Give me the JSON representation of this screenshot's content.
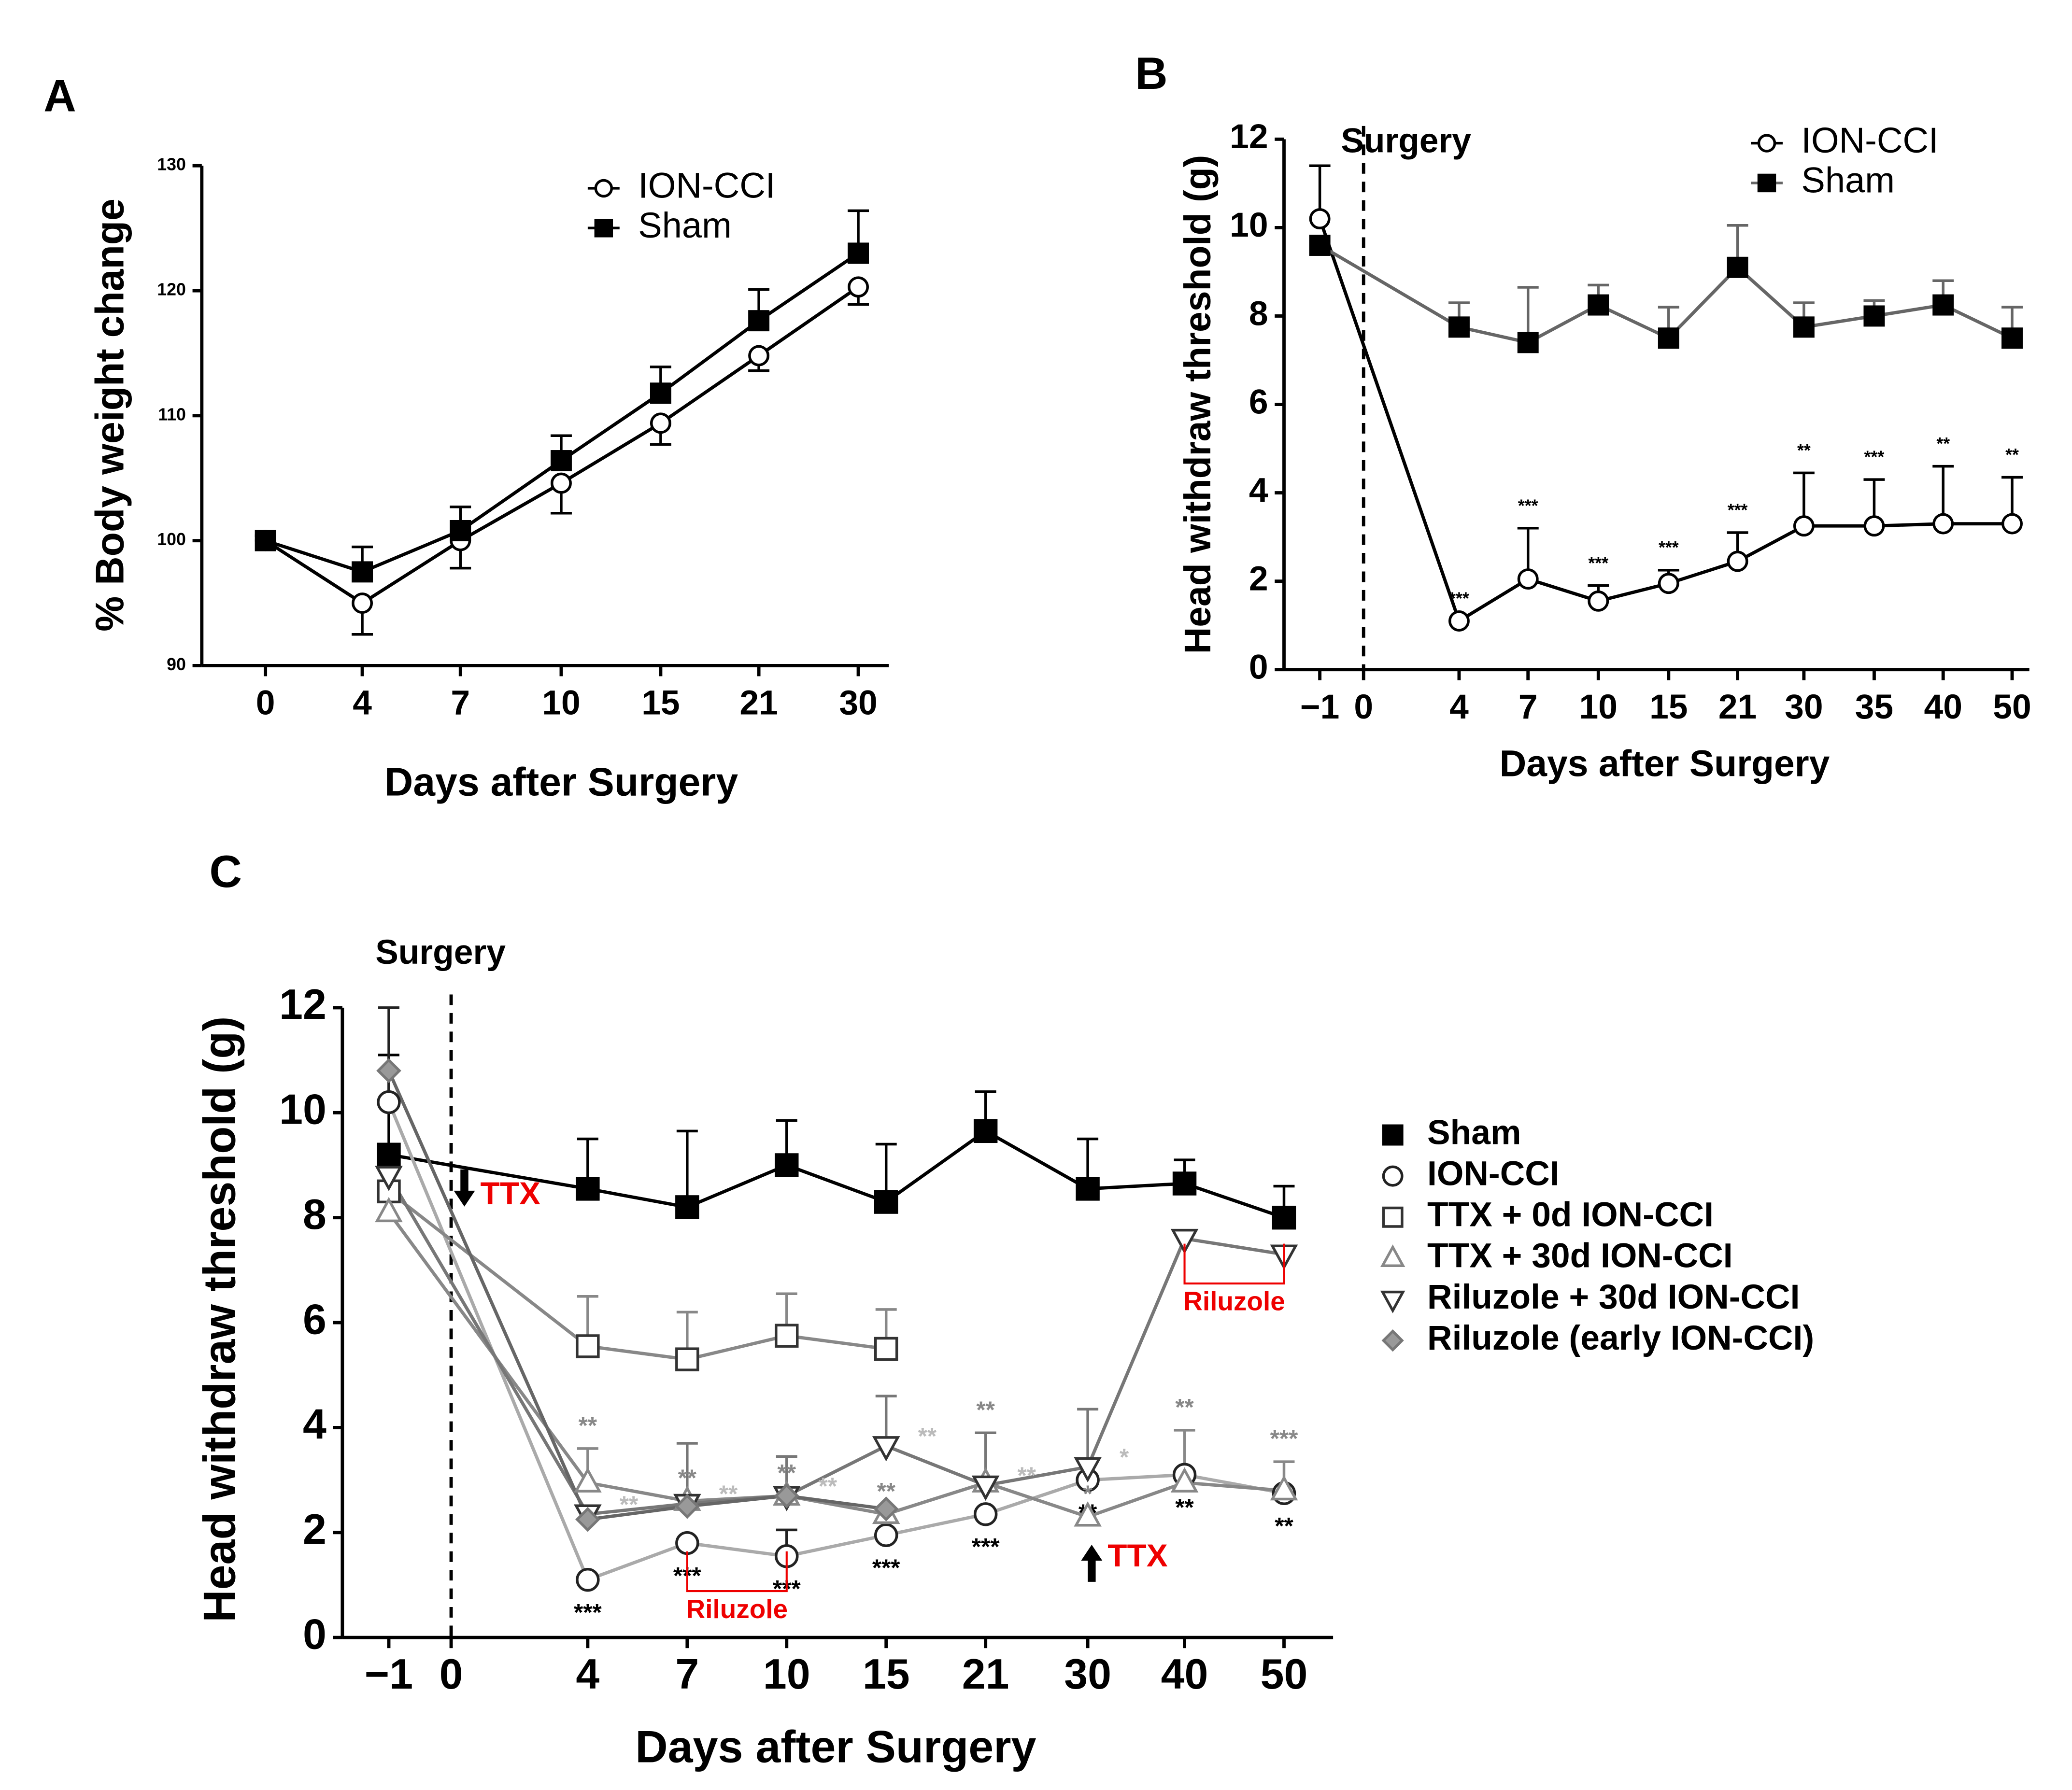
{
  "chart_data": [
    {
      "type": "line",
      "panel": "A",
      "x_label": "Days after Surgery",
      "y_label": "% Body weight change",
      "categories": [
        "0",
        "4",
        "7",
        "10",
        "15",
        "21",
        "30"
      ],
      "ylim": [
        90,
        130
      ],
      "yticks": [
        90,
        100,
        110,
        120,
        130
      ],
      "series": [
        {
          "name": "ION-CCI",
          "color": "#000000",
          "line_color": "#000000",
          "marker": "circle",
          "error_direction": "down",
          "values": [
            100,
            95.0,
            100.0,
            104.6,
            109.4,
            114.8,
            120.3
          ],
          "errors": [
            null,
            2.5,
            2.2,
            2.4,
            1.7,
            1.2,
            1.4
          ]
        },
        {
          "name": "Sham",
          "color": "#000000",
          "line_color": "#000000",
          "marker": "square-filled",
          "error_direction": "up",
          "values": [
            100,
            97.5,
            100.8,
            106.4,
            111.8,
            117.6,
            123.0
          ],
          "errors": [
            0.4,
            2.0,
            1.9,
            2.0,
            2.1,
            2.5,
            3.4
          ]
        }
      ]
    },
    {
      "type": "line",
      "panel": "B",
      "x_label": "Days after Surgery",
      "y_label": "Head withdraw threshold (g)",
      "categories": [
        "−1",
        "4",
        "7",
        "10",
        "15",
        "21",
        "30",
        "35",
        "40",
        "50"
      ],
      "surgery": {
        "tick": "0",
        "label": "Surgery"
      },
      "ylim": [
        0,
        12
      ],
      "yticks": [
        0,
        2,
        4,
        6,
        8,
        10,
        12
      ],
      "series": [
        {
          "name": "ION-CCI",
          "color": "#000000",
          "line_color": "#000000",
          "marker": "circle",
          "error_direction": "up",
          "values": [
            10.2,
            1.1,
            2.05,
            1.55,
            1.95,
            2.45,
            3.25,
            3.25,
            3.3,
            3.3
          ],
          "errors": [
            1.2,
            null,
            1.15,
            0.35,
            0.3,
            0.65,
            1.2,
            1.05,
            1.3,
            1.05
          ],
          "significance": [
            null,
            "***",
            "***",
            "***",
            "***",
            "***",
            "**",
            "***",
            "**",
            "**"
          ],
          "significance_color": "#000000",
          "significance_position": "above"
        },
        {
          "name": "Sham",
          "color": "#000000",
          "line_color": "#666666",
          "marker": "square-filled",
          "error_direction": "up",
          "values": [
            9.6,
            7.75,
            7.4,
            8.25,
            7.5,
            9.1,
            7.75,
            8.0,
            8.25,
            7.5
          ],
          "errors": [
            null,
            0.55,
            1.25,
            0.45,
            0.7,
            0.95,
            0.55,
            0.35,
            0.55,
            0.7
          ]
        }
      ]
    },
    {
      "type": "line",
      "panel": "C",
      "x_label": "Days after Surgery",
      "y_label": "Head withdraw threshold (g)",
      "categories": [
        "−1",
        "4",
        "7",
        "10",
        "15",
        "21",
        "30",
        "40",
        "50"
      ],
      "surgery": {
        "tick": "0",
        "label": "Surgery"
      },
      "ylim": [
        0,
        12
      ],
      "yticks": [
        0,
        2,
        4,
        6,
        8,
        10,
        12
      ],
      "annotation_color": "#ee0000",
      "annotations": [
        {
          "text": "TTX",
          "at": "0",
          "arrow": "down"
        },
        {
          "text": "TTX",
          "at": "30",
          "arrow": "up"
        },
        {
          "text": "Riluzole",
          "from": "7",
          "to": "10"
        },
        {
          "text": "Riluzole",
          "from": "40",
          "to": "50"
        }
      ],
      "series": [
        {
          "name": "Sham",
          "color": "#000000",
          "line_color": "#000000",
          "marker": "square-filled",
          "error_direction": "up",
          "values": [
            9.2,
            8.55,
            8.2,
            9.0,
            8.3,
            9.65,
            8.55,
            8.65,
            8.0
          ],
          "errors": [
            1.9,
            0.95,
            1.45,
            0.85,
            1.1,
            0.75,
            0.95,
            0.45,
            0.6
          ]
        },
        {
          "name": "ION-CCI",
          "color": "#222222",
          "line_color": "#aaaaaa",
          "marker": "circle",
          "error_direction": "up",
          "values": [
            10.2,
            1.1,
            1.8,
            1.55,
            1.95,
            2.35,
            3.0,
            3.1,
            2.75
          ],
          "errors": [
            1.8,
            null,
            null,
            0.5,
            null,
            null,
            null,
            null,
            null
          ],
          "significance": [
            null,
            "***",
            "***",
            "***",
            "***",
            "***",
            "**",
            "**",
            "**"
          ],
          "significance_color": "#000000",
          "significance_position": "below"
        },
        {
          "name": "TTX + 0d ION-CCI",
          "color": "#333333",
          "line_color": "#888888",
          "marker": "square",
          "error_direction": "up",
          "values": [
            8.5,
            5.55,
            5.3,
            5.75,
            5.5,
            null,
            null,
            null,
            null
          ],
          "errors": [
            null,
            0.95,
            0.9,
            0.8,
            0.75,
            null,
            null,
            null,
            null
          ]
        },
        {
          "name": "TTX + 30d ION-CCI",
          "color": "#888888",
          "line_color": "#888888",
          "marker": "triangle-up",
          "error_direction": "up",
          "values": [
            8.1,
            2.95,
            2.6,
            2.7,
            2.35,
            2.95,
            2.3,
            2.95,
            2.8
          ],
          "errors": [
            null,
            0.65,
            null,
            null,
            null,
            0.95,
            null,
            1.0,
            0.55
          ],
          "significance": [
            null,
            "**",
            "**",
            "**",
            "**",
            "**",
            "*",
            "**",
            "***"
          ],
          "significance_color": "#888888",
          "significance_position": "above"
        },
        {
          "name": "Riluzole + 30d ION-CCI",
          "color": "#333333",
          "line_color": "#777777",
          "marker": "triangle-down",
          "error_direction": "up",
          "values": [
            8.8,
            2.35,
            2.55,
            2.7,
            3.65,
            2.9,
            3.25,
            7.6,
            7.3
          ],
          "errors": [
            null,
            null,
            1.15,
            0.75,
            0.95,
            1.0,
            1.1,
            null,
            null
          ],
          "significance": [
            null,
            "**",
            "**",
            "**",
            "**",
            "**",
            "*",
            null,
            null
          ],
          "significance_color": "#bbbbbb",
          "significance_position": "right"
        },
        {
          "name": "Riluzole (early ION-CCI)",
          "color": "#777777",
          "line_color": "#666666",
          "marker": "diamond",
          "error_direction": "up",
          "values": [
            10.8,
            2.25,
            2.5,
            2.7,
            2.45,
            null,
            null,
            null,
            null
          ],
          "errors": [
            null,
            null,
            null,
            null,
            null,
            null,
            null,
            null,
            null
          ]
        }
      ]
    }
  ]
}
